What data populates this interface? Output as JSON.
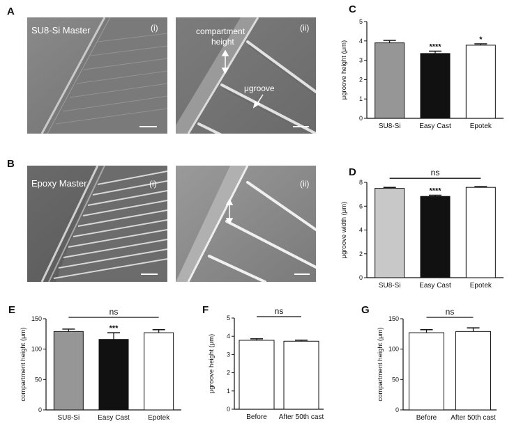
{
  "panels": {
    "A": {
      "label": "A",
      "image_i": {
        "title": "SU8-Si Master",
        "sub": "(i)"
      },
      "image_ii": {
        "sub": "(ii)",
        "annot_height_1": "compartment",
        "annot_height_2": "height",
        "annot_groove": "μgroove"
      }
    },
    "B": {
      "label": "B",
      "image_i": {
        "title": "Epoxy Master",
        "sub": "(i)"
      },
      "image_ii": {
        "sub": "(ii)"
      }
    }
  },
  "chart_data": [
    {
      "id": "C",
      "label": "C",
      "type": "bar",
      "categories": [
        "SU8-Si",
        "Easy Cast",
        "Epotek"
      ],
      "values": [
        3.9,
        3.35,
        3.78
      ],
      "errors": [
        0.13,
        0.12,
        0.07
      ],
      "colors": [
        "#969696",
        "#111111",
        "#ffffff"
      ],
      "ylabel": "μgroove height (μm)",
      "ylim": [
        0,
        5
      ],
      "yticks": [
        0,
        1,
        2,
        3,
        4,
        5
      ],
      "stars": [
        "",
        "****",
        "*"
      ],
      "ns": ""
    },
    {
      "id": "D",
      "label": "D",
      "type": "bar",
      "categories": [
        "SU8-Si",
        "Easy Cast",
        "Epotek"
      ],
      "values": [
        7.5,
        6.82,
        7.58
      ],
      "errors": [
        0.08,
        0.1,
        0.06
      ],
      "colors": [
        "#c8c8c8",
        "#111111",
        "#ffffff"
      ],
      "ylabel": "μgroove width (μm)",
      "ylim": [
        0,
        8
      ],
      "yticks": [
        0,
        2,
        4,
        6,
        8
      ],
      "stars": [
        "",
        "****",
        ""
      ],
      "ns": "ns"
    },
    {
      "id": "E",
      "label": "E",
      "type": "bar",
      "categories": [
        "SU8-Si",
        "Easy Cast",
        "Epotek"
      ],
      "values": [
        129,
        116,
        127
      ],
      "errors": [
        4,
        11,
        5
      ],
      "colors": [
        "#969696",
        "#111111",
        "#ffffff"
      ],
      "ylabel": "compartment height (μm)",
      "ylim": [
        0,
        150
      ],
      "yticks": [
        0,
        50,
        100,
        150
      ],
      "stars": [
        "",
        "***",
        ""
      ],
      "ns": "ns"
    },
    {
      "id": "F",
      "label": "F",
      "type": "bar",
      "categories": [
        "Before",
        "After 50th cast"
      ],
      "values": [
        3.78,
        3.73
      ],
      "errors": [
        0.08,
        0.06
      ],
      "colors": [
        "#ffffff",
        "#ffffff"
      ],
      "ylabel": "μgroove height (μm)",
      "ylim": [
        0,
        5
      ],
      "yticks": [
        0,
        1,
        2,
        3,
        4,
        5
      ],
      "stars": [
        "",
        ""
      ],
      "ns": "ns"
    },
    {
      "id": "G",
      "label": "G",
      "type": "bar",
      "categories": [
        "Before",
        "After 50th cast"
      ],
      "values": [
        127,
        129
      ],
      "errors": [
        5,
        6
      ],
      "colors": [
        "#ffffff",
        "#ffffff"
      ],
      "ylabel": "compartment height (μm)",
      "ylim": [
        0,
        150
      ],
      "yticks": [
        0,
        50,
        100,
        150
      ],
      "stars": [
        "",
        ""
      ],
      "ns": "ns"
    }
  ]
}
